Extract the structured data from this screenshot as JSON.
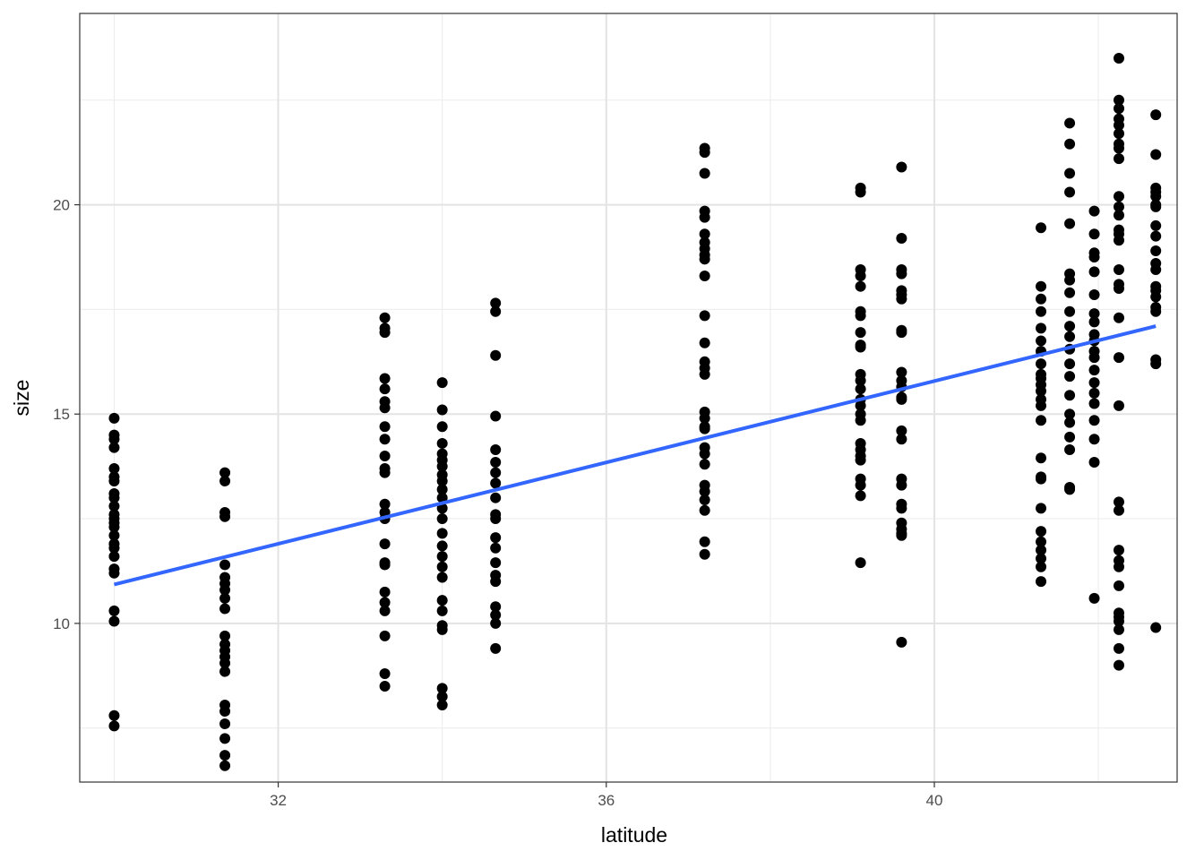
{
  "chart_data": {
    "type": "scatter",
    "title": "",
    "xlabel": "latitude",
    "ylabel": "size",
    "xlim": [
      29.58,
      42.96
    ],
    "ylim": [
      6.21,
      24.57
    ],
    "x_ticks": [
      32,
      36,
      40
    ],
    "x_tick_labels": [
      "32",
      "36",
      "40"
    ],
    "x_minor_ticks": [
      30,
      34,
      38,
      42
    ],
    "y_ticks": [
      10,
      15,
      20
    ],
    "y_tick_labels": [
      "10",
      "15",
      "20"
    ],
    "y_minor_ticks": [
      7.5,
      12.5,
      17.5,
      22.5
    ],
    "grid": true,
    "legend": "none",
    "point_color": "#000000",
    "trend_line": {
      "method": "linear",
      "color": "#3366FF",
      "x": [
        30.0,
        42.7
      ],
      "y": [
        10.93,
        17.1
      ]
    },
    "groups": [
      {
        "x": 30.0,
        "y": [
          14.9,
          14.5,
          14.4,
          14.2,
          13.7,
          13.5,
          13.4,
          13.1,
          13.0,
          12.8,
          12.6,
          12.5,
          12.4,
          12.3,
          12.1,
          11.9,
          11.8,
          11.6,
          11.3,
          11.2,
          10.3,
          10.05,
          7.8,
          7.55
        ]
      },
      {
        "x": 31.35,
        "y": [
          13.6,
          13.4,
          12.65,
          12.55,
          11.4,
          11.1,
          10.95,
          10.8,
          10.6,
          10.35,
          9.7,
          9.5,
          9.35,
          9.2,
          9.05,
          8.85,
          8.05,
          7.9,
          7.6,
          7.25,
          6.85,
          6.6
        ]
      },
      {
        "x": 33.3,
        "y": [
          17.3,
          17.05,
          16.95,
          15.85,
          15.6,
          15.3,
          15.15,
          14.7,
          14.4,
          14.0,
          13.7,
          13.6,
          12.85,
          12.65,
          12.5,
          11.9,
          11.45,
          11.4,
          10.75,
          10.5,
          10.3,
          9.7,
          8.8,
          8.5
        ]
      },
      {
        "x": 34.0,
        "y": [
          15.75,
          15.1,
          14.7,
          14.3,
          14.05,
          13.9,
          13.75,
          13.55,
          13.4,
          13.2,
          13.0,
          12.75,
          12.5,
          12.15,
          11.85,
          11.6,
          11.35,
          11.1,
          10.55,
          10.3,
          9.95,
          9.85,
          8.45,
          8.25,
          8.05
        ]
      },
      {
        "x": 34.65,
        "y": [
          17.65,
          17.45,
          16.4,
          14.95,
          14.15,
          13.85,
          13.6,
          13.35,
          13.0,
          12.6,
          12.5,
          12.05,
          11.8,
          11.45,
          11.15,
          11.0,
          10.4,
          10.2,
          10.0,
          9.4
        ]
      },
      {
        "x": 37.2,
        "y": [
          21.35,
          21.25,
          20.75,
          19.85,
          19.7,
          19.3,
          19.1,
          18.95,
          18.8,
          18.7,
          18.3,
          17.35,
          16.7,
          16.25,
          16.1,
          15.95,
          15.05,
          14.9,
          14.7,
          14.65,
          14.2,
          14.05,
          13.8,
          13.3,
          13.15,
          12.95,
          12.7,
          11.95,
          11.65
        ]
      },
      {
        "x": 39.1,
        "y": [
          20.4,
          20.3,
          18.45,
          18.3,
          18.05,
          17.45,
          17.35,
          16.95,
          16.65,
          16.6,
          15.95,
          15.8,
          15.6,
          15.35,
          15.2,
          15.0,
          14.85,
          14.3,
          14.15,
          14.0,
          13.9,
          13.45,
          13.3,
          13.05,
          11.45
        ]
      },
      {
        "x": 39.6,
        "y": [
          20.9,
          19.2,
          18.45,
          18.35,
          17.95,
          17.85,
          17.75,
          17.0,
          16.95,
          16.0,
          15.8,
          15.65,
          15.4,
          15.35,
          14.6,
          14.4,
          13.45,
          13.3,
          12.85,
          12.75,
          12.4,
          12.25,
          12.15,
          12.1,
          9.55
        ]
      },
      {
        "x": 41.3,
        "y": [
          19.45,
          18.05,
          17.75,
          17.45,
          17.05,
          16.75,
          16.5,
          16.2,
          15.95,
          15.85,
          15.7,
          15.55,
          15.35,
          15.2,
          14.85,
          13.95,
          13.5,
          13.45,
          12.75,
          12.2,
          11.95,
          11.75,
          11.55,
          11.35,
          11.0
        ]
      },
      {
        "x": 41.65,
        "y": [
          21.95,
          21.45,
          20.75,
          20.3,
          19.55,
          18.35,
          18.2,
          17.9,
          17.45,
          17.1,
          16.85,
          16.55,
          16.2,
          15.9,
          15.45,
          15.0,
          14.8,
          14.45,
          14.15,
          13.25,
          13.2
        ]
      },
      {
        "x": 41.95,
        "y": [
          19.85,
          19.3,
          18.85,
          18.75,
          18.4,
          17.85,
          17.4,
          17.2,
          16.9,
          16.75,
          16.5,
          16.35,
          16.05,
          15.75,
          15.5,
          15.25,
          14.85,
          14.4,
          13.85,
          10.6
        ]
      },
      {
        "x": 42.25,
        "y": [
          23.5,
          22.5,
          22.3,
          22.05,
          21.9,
          21.7,
          21.45,
          21.35,
          21.1,
          20.2,
          19.95,
          19.75,
          19.4,
          19.3,
          19.15,
          18.45,
          18.1,
          18.0,
          17.3,
          16.35,
          15.2,
          12.9,
          12.7,
          11.75,
          11.5,
          11.35,
          10.9,
          10.25,
          10.15,
          10.05,
          9.85,
          9.4,
          9.0
        ]
      },
      {
        "x": 42.7,
        "y": [
          22.15,
          21.2,
          20.4,
          20.3,
          20.2,
          20.0,
          19.95,
          19.5,
          19.25,
          18.9,
          18.6,
          18.45,
          18.05,
          17.95,
          17.8,
          17.55,
          17.45,
          16.3,
          16.2,
          9.9
        ]
      }
    ]
  }
}
